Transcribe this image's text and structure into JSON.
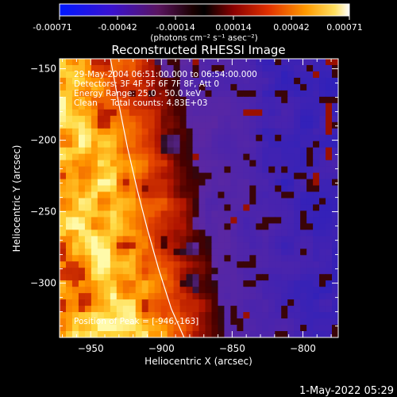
{
  "colorbar": {
    "tick_labels": [
      "-0.00071",
      "-0.00042",
      "-0.00014",
      "0.00014",
      "0.00042",
      "0.00071"
    ],
    "unit_text": "(photons cm⁻² s⁻¹ asec⁻²)"
  },
  "chart_data": {
    "type": "heatmap",
    "title": "Reconstructed RHESSI Image",
    "xlabel": "Heliocentric X (arcsec)",
    "ylabel": "Heliocentric Y (arcsec)",
    "xlim": [
      -972,
      -775
    ],
    "ylim": [
      -338,
      -143
    ],
    "x_ticks": [
      -950,
      -900,
      -850,
      -800
    ],
    "x_tick_labels": [
      "−950",
      "−900",
      "−850",
      "−800"
    ],
    "y_ticks": [
      -150,
      -200,
      -250,
      -300
    ],
    "y_tick_labels": [
      "−150",
      "−200",
      "−250",
      "−300"
    ],
    "colorscale_range": [
      -0.00071,
      0.00071
    ],
    "limb_curve": [
      [
        -936,
        -143
      ],
      [
        -930,
        -175
      ],
      [
        -924,
        -205
      ],
      [
        -917,
        -235
      ],
      [
        -910,
        -262
      ],
      [
        -902,
        -290
      ],
      [
        -893,
        -318
      ],
      [
        -884,
        -338
      ]
    ],
    "annotations": [
      "29-May-2004 06:51:00.000 to 06:54:00.000",
      "Detectors: 3F 4F 5F 6F 7F 8F, Att 0",
      "Energy Range: 25.0 - 50.0 keV",
      "Clean     Total counts: 4.83E+03"
    ],
    "peak_label": "Position of Peak = [-946,-163]",
    "peak_position": [
      -946,
      -163
    ]
  },
  "footer": {
    "timestamp": "1-May-2022 05:29"
  }
}
